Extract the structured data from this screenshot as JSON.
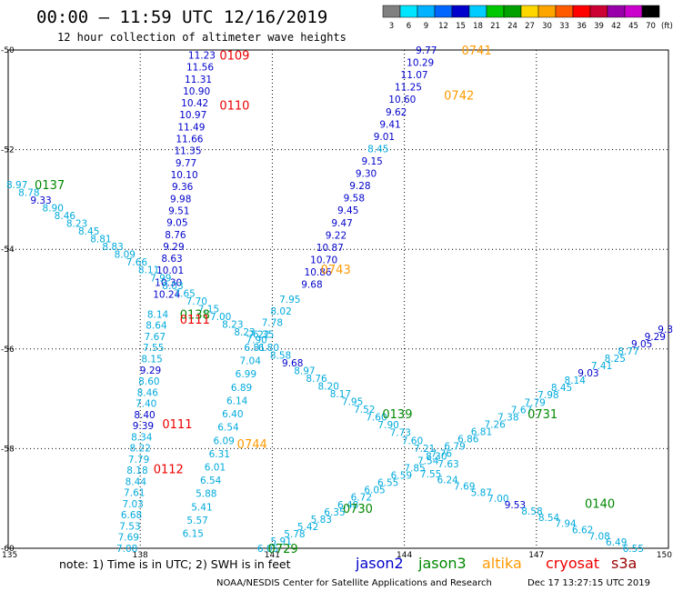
{
  "title": "00:00 – 11:59 UTC 12/16/2019",
  "subtitle": "12 hour collection of altimeter wave heights",
  "colorbar": {
    "labels": [
      "3",
      "6",
      "9",
      "12",
      "15",
      "18",
      "21",
      "24",
      "27",
      "30",
      "33",
      "36",
      "39",
      "42",
      "45",
      "70"
    ],
    "unit": "(ft)",
    "colors": [
      "#808080",
      "#00e5ff",
      "#00b2ff",
      "#0066ff",
      "#0000cd",
      "#00ccff",
      "#00c800",
      "#00a000",
      "#ffd700",
      "#ffa500",
      "#ff5a00",
      "#ff0000",
      "#cc0033",
      "#9900aa",
      "#cc00cc",
      "#000000"
    ]
  },
  "y_labels": [
    "-50",
    "-52",
    "-54",
    "-56",
    "-58",
    "-60"
  ],
  "x_labels": [
    "135",
    "138",
    "141",
    "144",
    "147",
    "150"
  ],
  "note": "note:  1) Time is in UTC;  2) SWH is in feet",
  "satellites": [
    {
      "name": "jason2",
      "color": "#0000cc"
    },
    {
      "name": "jason3",
      "color": "#008800"
    },
    {
      "name": "altika",
      "color": "#ff9900"
    },
    {
      "name": "cryosat",
      "color": "#ee0000"
    },
    {
      "name": "s3a",
      "color": "#990000"
    }
  ],
  "credit_left": "NOAA/NESDIS Center for Satellite Applications and Research",
  "credit_right": "Dec 17 13:27:15 UTC 2019",
  "chart_data": {
    "type": "scatter",
    "x_range": [
      135,
      150
    ],
    "y_range": [
      -60,
      -50
    ],
    "pass_labels": [
      {
        "text": "0109",
        "lon": 139.8,
        "lat": -50.1,
        "sat": "cryosat"
      },
      {
        "text": "0110",
        "lon": 139.8,
        "lat": -51.1,
        "sat": "cryosat"
      },
      {
        "text": "0137",
        "lon": 135.6,
        "lat": -52.7,
        "sat": "jason3"
      },
      {
        "text": "0138",
        "lon": 138.9,
        "lat": -55.3,
        "sat": "jason3"
      },
      {
        "text": "0111",
        "lon": 138.9,
        "lat": -55.4,
        "sat": "cryosat"
      },
      {
        "text": "0111",
        "lon": 138.5,
        "lat": -57.5,
        "sat": "cryosat"
      },
      {
        "text": "0112",
        "lon": 138.3,
        "lat": -58.4,
        "sat": "cryosat"
      },
      {
        "text": "0139",
        "lon": 143.5,
        "lat": -57.3,
        "sat": "jason3"
      },
      {
        "text": "0731",
        "lon": 146.8,
        "lat": -57.3,
        "sat": "jason3"
      },
      {
        "text": "0140",
        "lon": 148.1,
        "lat": -59.1,
        "sat": "jason3"
      },
      {
        "text": "0730",
        "lon": 142.6,
        "lat": -59.2,
        "sat": "jason3"
      },
      {
        "text": "0729",
        "lon": 140.9,
        "lat": -60.0,
        "sat": "jason3"
      },
      {
        "text": "0741",
        "lon": 145.3,
        "lat": -50.0,
        "sat": "altika"
      },
      {
        "text": "0742",
        "lon": 144.9,
        "lat": -50.9,
        "sat": "altika"
      },
      {
        "text": "0743",
        "lon": 142.1,
        "lat": -54.4,
        "sat": "altika"
      },
      {
        "text": "0744",
        "lon": 140.2,
        "lat": -57.9,
        "sat": "altika"
      }
    ],
    "tracks": [
      {
        "id": "cryosat-0109-0110",
        "color": "#0000cc",
        "lon0": 139.4,
        "lat0": -50.1,
        "lon1": 138.6,
        "lat1": -54.9,
        "values": [
          "11.23",
          "11.56",
          "11.31",
          "10.90",
          "10.42",
          "10.97",
          "11.49",
          "11.66",
          "11.35",
          "9.77",
          "10.10",
          "9.36",
          "9.98",
          "9.51",
          "9.05",
          "8.76",
          "9.29",
          "8.63",
          "10.01",
          "10.30",
          "10.24"
        ]
      },
      {
        "id": "cryosat-0111-0112",
        "color": "#00aadd",
        "lon0": 138.4,
        "lat0": -55.3,
        "lon1": 137.7,
        "lat1": -60.0,
        "values": [
          "8.14",
          "8.64",
          "7.67",
          "7.55",
          "8.15",
          "9.29",
          "8.60",
          "8.46",
          "7.40",
          "8.40",
          "9.39",
          "8.34",
          "8.22",
          "7.79",
          "8.18",
          "8.44",
          "7.61",
          "7.03",
          "6.68",
          "7.53",
          "7.69",
          "7.08"
        ],
        "colors": {
          "5": "#0000cc",
          "9": "#0000cc",
          "10": "#0000cc"
        }
      },
      {
        "id": "altika-0744",
        "color": "#00aadd",
        "lon0": 140.7,
        "lat0": -55.7,
        "lon1": 139.2,
        "lat1": -59.7,
        "values": [
          "7.22",
          "6.81",
          "7.04",
          "6.99",
          "6.89",
          "6.14",
          "6.40",
          "6.54",
          "6.09",
          "6.31",
          "6.01",
          "6.54",
          "5.88",
          "5.41",
          "5.57",
          "6.15"
        ]
      },
      {
        "id": "altika-0741-0743",
        "color": "#0000cc",
        "lon0": 144.5,
        "lat0": -50.0,
        "lon1": 141.9,
        "lat1": -54.7,
        "values": [
          "9.77",
          "10.29",
          "11.07",
          "11.25",
          "10.60",
          "9.62",
          "9.41",
          "9.01",
          "8.45",
          "9.15",
          "9.30",
          "9.28",
          "9.58",
          "9.45",
          "9.47",
          "9.22",
          "10.87",
          "10.70",
          "10.86",
          "9.68"
        ],
        "colors": {
          "8": "#00aadd"
        }
      },
      {
        "id": "altika-0743-tail",
        "color": "#00aadd",
        "lon0": 141.4,
        "lat0": -55.0,
        "lon1": 140.8,
        "lat1": -55.7,
        "values": [
          "7.95",
          "8.02",
          "7.78",
          "6.35"
        ]
      },
      {
        "id": "jason3-0137-0139",
        "color": "#00aadd",
        "lon0": 135.2,
        "lat0": -52.7,
        "lon1": 145.0,
        "lat1": -58.3,
        "values": [
          "8.97",
          "8.78",
          "9.33",
          "8.90",
          "8.46",
          "8.23",
          "8.45",
          "8.81",
          "8.83",
          "8.09",
          "7.66",
          "8.11",
          "7.99",
          "8.03",
          "7.65",
          "7.70",
          "7.15",
          "7.00",
          "8.23",
          "8.23",
          "7.90",
          "6.80",
          "8.58",
          "9.68",
          "8.97",
          "8.76",
          "8.20",
          "8.17",
          "7.95",
          "7.52",
          "7.60",
          "7.90",
          "7.73",
          "7.60",
          "7.21",
          "8.30",
          "7.63"
        ],
        "colors": {
          "2": "#0000cc",
          "23": "#0000cc"
        }
      },
      {
        "id": "jason3-0729-0731",
        "color": "#00aadd",
        "lon0": 140.9,
        "lat0": -60.0,
        "lon1": 150.0,
        "lat1": -55.6,
        "values": [
          "6.05",
          "5.91",
          "5.78",
          "5.42",
          "5.83",
          "6.35",
          "6.48",
          "6.72",
          "6.05",
          "6.55",
          "6.59",
          "7.85",
          "7.54",
          "7.76",
          "6.79",
          "6.86",
          "6.81",
          "7.26",
          "7.38",
          "7.67",
          "7.79",
          "7.98",
          "8.45",
          "8.14",
          "9.03",
          "7.41",
          "8.25",
          "8.77",
          "9.05",
          "9.29",
          "9.30"
        ],
        "colors": {
          "24": "#0000cc",
          "28": "#0000cc",
          "29": "#0000cc",
          "30": "#0000cc"
        }
      },
      {
        "id": "jason3-0140",
        "color": "#00aadd",
        "lon0": 144.6,
        "lat0": -58.5,
        "lon1": 149.2,
        "lat1": -60.0,
        "values": [
          "7.55",
          "6.24",
          "7.69",
          "5.87",
          "7.00",
          "9.53",
          "8.58",
          "8.54",
          "7.94",
          "6.62",
          "7.08",
          "6.49",
          "6.55"
        ],
        "colors": {
          "5": "#0000cc"
        }
      }
    ]
  }
}
